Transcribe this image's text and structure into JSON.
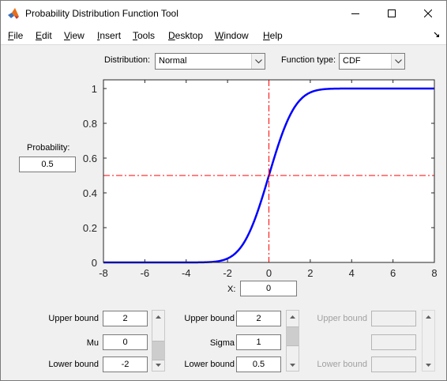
{
  "window": {
    "title": "Probability Distribution Function Tool"
  },
  "menu": {
    "items": [
      {
        "u": "F",
        "rest": "ile"
      },
      {
        "u": "E",
        "rest": "dit"
      },
      {
        "u": "V",
        "rest": "iew"
      },
      {
        "u": "I",
        "rest": "nsert"
      },
      {
        "u": "T",
        "rest": "ools"
      },
      {
        "u": "D",
        "rest": "esktop"
      },
      {
        "u": "W",
        "rest": "indow"
      },
      {
        "u": "H",
        "rest": "elp"
      }
    ]
  },
  "controls": {
    "distribution_label": "Distribution:",
    "distribution_value": "Normal",
    "function_type_label": "Function type:",
    "function_type_value": "CDF",
    "probability_label": "Probability:",
    "probability_value": "0.5",
    "x_label": "X:",
    "x_value": "0"
  },
  "params": [
    {
      "upper_label": "Upper bound",
      "upper_value": "2",
      "name": "Mu",
      "value": "0",
      "lower_label": "Lower bound",
      "lower_value": "-2",
      "enabled": true
    },
    {
      "upper_label": "Upper bound",
      "upper_value": "2",
      "name": "Sigma",
      "value": "1",
      "lower_label": "Lower bound",
      "lower_value": "0.5",
      "enabled": true
    },
    {
      "upper_label": "Upper bound",
      "upper_value": "",
      "name": "",
      "value": "",
      "lower_label": "Lower bound",
      "lower_value": "",
      "enabled": false
    }
  ],
  "chart_data": {
    "type": "line",
    "title": "",
    "xlabel": "",
    "ylabel": "",
    "xlim": [
      -8,
      8
    ],
    "ylim": [
      0,
      1.05
    ],
    "x_ticks": [
      "-8",
      "-6",
      "-4",
      "-2",
      "0",
      "2",
      "4",
      "6",
      "8"
    ],
    "y_ticks": [
      "0",
      "0.2",
      "0.4",
      "0.6",
      "0.8",
      "1"
    ],
    "series": [
      {
        "function": "normal CDF",
        "mu": 0,
        "sigma": 1,
        "color": "#0000ff"
      }
    ],
    "crosshair": {
      "x": 0,
      "y": 0.5,
      "color": "#ff0000",
      "style": "dash-dot"
    }
  },
  "colors": {
    "curve": "#0000ff",
    "crosshair": "#ff0000"
  }
}
